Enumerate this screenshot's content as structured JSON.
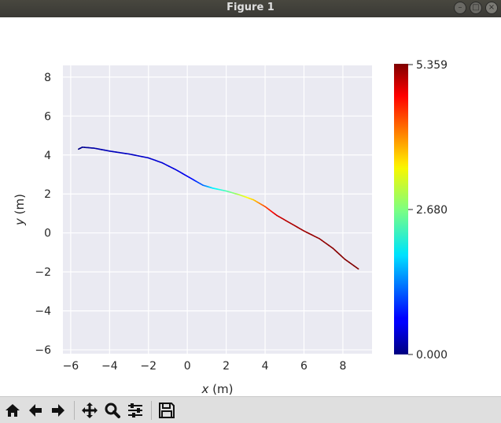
{
  "window": {
    "title": "Figure 1"
  },
  "toolbar": {
    "buttons": [
      "home-icon",
      "back-icon",
      "forward-icon",
      "pan-icon",
      "zoom-icon",
      "configure-subplots-icon",
      "save-icon"
    ]
  },
  "chart_data": {
    "type": "line",
    "xlabel_var": "x",
    "xlabel_unit": " (m)",
    "ylabel_var": "y",
    "ylabel_unit": " (m)",
    "xlim": [
      -6.4,
      9.5
    ],
    "ylim": [
      -6.2,
      8.6
    ],
    "xticks": [
      -6,
      -4,
      -2,
      0,
      2,
      4,
      6,
      8
    ],
    "yticks": [
      -6,
      -4,
      -2,
      0,
      2,
      4,
      6,
      8
    ],
    "xticklabels": [
      "−6",
      "−4",
      "−2",
      "0",
      "2",
      "4",
      "6",
      "8"
    ],
    "yticklabels": [
      "−6",
      "−4",
      "−2",
      "0",
      "2",
      "4",
      "6",
      "8"
    ],
    "grid": true,
    "colorbar": {
      "colormap": "jet",
      "min": 0.0,
      "max": 5.359,
      "ticks": [
        0.0,
        2.68,
        5.359
      ],
      "ticklabels": [
        "0.000",
        "2.680",
        "5.359"
      ]
    },
    "trajectory": [
      {
        "x": -5.6,
        "y": 4.3,
        "c": 0.0
      },
      {
        "x": -5.4,
        "y": 4.4,
        "c": 0.1
      },
      {
        "x": -4.8,
        "y": 4.35,
        "c": 0.2
      },
      {
        "x": -4.0,
        "y": 4.2,
        "c": 0.3
      },
      {
        "x": -3.0,
        "y": 4.05,
        "c": 0.35
      },
      {
        "x": -2.0,
        "y": 3.85,
        "c": 0.4
      },
      {
        "x": -1.3,
        "y": 3.6,
        "c": 0.45
      },
      {
        "x": -0.6,
        "y": 3.25,
        "c": 0.5
      },
      {
        "x": 0.1,
        "y": 2.85,
        "c": 0.6
      },
      {
        "x": 0.8,
        "y": 2.45,
        "c": 1.2
      },
      {
        "x": 1.3,
        "y": 2.3,
        "c": 1.9
      },
      {
        "x": 2.0,
        "y": 2.15,
        "c": 2.4
      },
      {
        "x": 2.7,
        "y": 1.95,
        "c": 3.0
      },
      {
        "x": 3.4,
        "y": 1.7,
        "c": 3.6
      },
      {
        "x": 4.0,
        "y": 1.35,
        "c": 4.3
      },
      {
        "x": 4.6,
        "y": 0.9,
        "c": 4.9
      },
      {
        "x": 5.3,
        "y": 0.5,
        "c": 5.1
      },
      {
        "x": 6.0,
        "y": 0.1,
        "c": 5.2
      },
      {
        "x": 6.8,
        "y": -0.3,
        "c": 5.25
      },
      {
        "x": 7.5,
        "y": -0.8,
        "c": 5.3
      },
      {
        "x": 8.1,
        "y": -1.35,
        "c": 5.33
      },
      {
        "x": 8.8,
        "y": -1.85,
        "c": 5.359
      }
    ]
  }
}
